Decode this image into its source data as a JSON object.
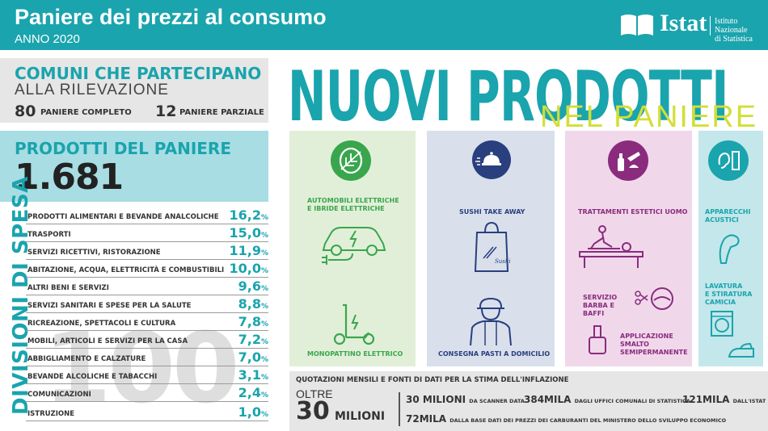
{
  "header": {
    "title": "Paniere dei prezzi al consumo",
    "subtitle": "ANNO 2020",
    "logo_word": "Istat",
    "logo_institute_line1": "Istituto Nazionale",
    "logo_institute_line2": "di Statistica"
  },
  "comuni": {
    "title_line1": "COMUNI CHE PARTECIPANO",
    "title_line2": "ALLA RILEVAZIONE",
    "complete_value": "80",
    "complete_label": "PANIERE COMPLETO",
    "partial_value": "12",
    "partial_label": "PANIERE PARZIALE"
  },
  "prodotti": {
    "title": "PRODOTTI DEL PANIERE",
    "value": "1.681"
  },
  "divisioni": {
    "vertical_title": "DIVISIONI DI SPESA",
    "total": "100",
    "rows": [
      {
        "label": "PRODOTTI ALIMENTARI E BEVANDE ANALCOLICHE",
        "value": "16,2",
        "pct": "%"
      },
      {
        "label": "TRASPORTI",
        "value": "15,0",
        "pct": "%"
      },
      {
        "label": "SERVIZI RICETTIVI, RISTORAZIONE",
        "value": "11,9",
        "pct": "%"
      },
      {
        "label": "ABITAZIONE, ACQUA, ELETTRICITÀ E COMBUSTIBILI",
        "value": "10,0",
        "pct": "%"
      },
      {
        "label": "ALTRI BENI E SERVIZI",
        "value": "9,6",
        "pct": "%"
      },
      {
        "label": "SERVIZI SANITARI E SPESE PER LA SALUTE",
        "value": "8,8",
        "pct": "%"
      },
      {
        "label": "RICREAZIONE, SPETTACOLI E CULTURA",
        "value": "7,8",
        "pct": "%"
      },
      {
        "label": "MOBILI, ARTICOLI E SERVIZI PER LA CASA",
        "value": "7,2",
        "pct": "%"
      },
      {
        "label": "ABBIGLIAMENTO E CALZATURE",
        "value": "7,0",
        "pct": "%"
      },
      {
        "label": "BEVANDE ALCOLICHE E TABACCHI",
        "value": "3,1",
        "pct": "%"
      },
      {
        "label": "COMUNICAZIONI",
        "value": "2,4",
        "pct": "%"
      },
      {
        "label": "ISTRUZIONE",
        "value": "1,0",
        "pct": "%"
      }
    ]
  },
  "nuovi": {
    "title": "NUOVI PRODOTTI",
    "subtitle": "NEL PANIERE"
  },
  "columns": {
    "col1_item1_line1": "AUTOMOBILI ELETTRICHE",
    "col1_item1_line2": "E IBRIDE ELETTRICHE",
    "col1_item2": "MONOPATTINO ELETTRICO",
    "col2_item1": "SUSHI TAKE AWAY",
    "col2_item2": "CONSEGNA PASTI A DOMICILIO",
    "col2_bag_text": "Sushi",
    "col3_item1": "TRATTAMENTI ESTETICI UOMO",
    "col3_item2_line1": "SERVIZIO",
    "col3_item2_line2": "BARBA E BAFFI",
    "col3_item3_line1": "APPLICAZIONE",
    "col3_item3_line2": "SMALTO",
    "col3_item3_line3": "SEMIPERMANENTE",
    "col4_item1_line1": "APPARECCHI",
    "col4_item1_line2": "ACUSTICI",
    "col4_item2_line1": "LAVATURA",
    "col4_item2_line2": "E STIRATURA",
    "col4_item2_line3": "CAMICIA"
  },
  "quotazioni": {
    "heading": "QUOTAZIONI MENSILI E FONTI DI DATI PER LA STIMA DELL'INFLAZIONE",
    "oltre": "OLTRE",
    "big_value": "30",
    "big_unit": "MILIONI",
    "s1_value": "30 MILIONI",
    "s1_label": "DA SCANNER DATA",
    "s2_value": "384MILA",
    "s2_label": "DAGLI UFFICI COMUNALI DI STATISTICA",
    "s3_value": "121MILA",
    "s3_label": "DALL'ISTAT",
    "s4_value": "72MILA",
    "s4_label": "DALLA BASE DATI DEI PREZZI DEI CARBURANTI DEL MINISTERO DELLO SVILUPPO ECONOMICO"
  },
  "colors": {
    "teal": "#1aa4ad",
    "lime": "#d3de38",
    "green": "#39a64e",
    "navy": "#2a3f7d",
    "purple": "#8a2b7e"
  },
  "icons": [
    "leaf-icon",
    "food-delivery-icon",
    "cosmetics-icon",
    "hearing-icon",
    "electric-car-icon",
    "scooter-icon",
    "sushi-bag-icon",
    "delivery-man-icon",
    "massage-icon",
    "beard-icon",
    "nail-polish-icon",
    "hearing-aid-icon",
    "washing-machine-icon",
    "iron-icon"
  ]
}
